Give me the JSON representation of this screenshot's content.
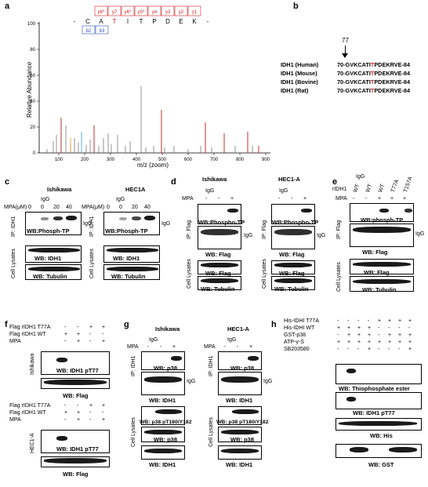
{
  "panels": {
    "a": {
      "label": "a",
      "ylabel": "Relative Abundance",
      "xlabel": "m/z (zoom)",
      "y_ticks": [
        "0",
        "20",
        "40",
        "60",
        "80",
        "100"
      ],
      "x_ticks": [
        "100",
        "200",
        "300",
        "400",
        "500",
        "600",
        "700",
        "800",
        "900"
      ],
      "sequence": [
        "-",
        "C",
        "A",
        "T",
        "I",
        "T",
        "P",
        "D",
        "E",
        "K",
        "-"
      ],
      "y_ions": [
        "y8*",
        "y7",
        "y6*",
        "y5*",
        "y4",
        "y3",
        "y2",
        "y1"
      ],
      "b_ions": [
        "b2",
        "b3"
      ],
      "phospho_site": "T"
    },
    "b": {
      "label": "b",
      "site_number": "77",
      "rows": [
        {
          "name": "IDH1 (Human)",
          "pre": "70-GVKCATI",
          "site": "T",
          "post": "PDEKRVE-84"
        },
        {
          "name": "IDH1 (Mouse)",
          "pre": "70-GVKCATI",
          "site": "T",
          "post": "PDEKRVE-84"
        },
        {
          "name": "IDH1 (Bovine)",
          "pre": "70-GVKCATI",
          "site": "T",
          "post": "PDEKRVE-84"
        },
        {
          "name": "IDH1 (Rat)",
          "pre": "70-GVKCATI",
          "site": "T",
          "post": "PDEKRVE-84"
        }
      ]
    },
    "c": {
      "label": "c",
      "left_title": "Ishikawa",
      "right_title": "HEC1A",
      "igg": "IgG",
      "mpa_label": "MPA(μM)",
      "doses": [
        "0",
        "0",
        "20",
        "40"
      ],
      "ip_label": "IP: IDH1",
      "lysate_label": "Cell Lysates",
      "wb_top": "WB:Phosph-TP",
      "wb_mid": "WB: IDH1",
      "wb_bot": "WB: Tubulin",
      "igg_side": "IgG"
    },
    "d": {
      "label": "d",
      "left_title": "Ishikawa",
      "right_title": "HEC1-A",
      "mpa": "MPA",
      "igg": "IgG",
      "signs": [
        "-",
        "-",
        "+"
      ],
      "ip_label": "IP: Flag",
      "lysate_label": "Cell Lysates",
      "wb_phospho": "WB:Phospho-TP",
      "wb_flag": "WB: Flag",
      "wb_lys_flag": "WB: Flag",
      "wb_tubulin": "WB: Tubulin",
      "igg_side": "IgG"
    },
    "e": {
      "label": "e",
      "igg": "IgG",
      "rIDH1": "rIDH1",
      "mpa": "MPA",
      "lanes": [
        "WT",
        "WT",
        "WT",
        "T77A",
        "T157A"
      ],
      "mpa_signs": [
        "-",
        "-",
        "+",
        "+",
        "+"
      ],
      "ip_label": "IP: Flag",
      "lysate_label": "Cell Lysates",
      "wb_top": "WB:phosph-TP",
      "wb_flag": "WB: Flag",
      "wb_lys_flag": "WB: Flag",
      "wb_tubulin": "WB: Tubulin",
      "igg_side": "IgG"
    },
    "f": {
      "label": "f",
      "row1": "Flag rIDH1 T77A",
      "row2": "Flag rIDH1 WT",
      "row3": "MPA",
      "r1_signs": [
        "-",
        "-",
        "+",
        "+"
      ],
      "r2_signs": [
        "+",
        "+",
        "-",
        "-"
      ],
      "r3_signs": [
        "-",
        "+",
        "-",
        "+"
      ],
      "cell_top": "Ishikawa",
      "cell_bot": "HEC1-A",
      "wb_pt77": "WB: IDH1 pT77",
      "wb_flag": "WB: Flag"
    },
    "g": {
      "label": "g",
      "left_title": "Ishikawa",
      "right_title": "HEC1-A",
      "igg": "IgG",
      "mpa": "MPA",
      "signs": [
        "-",
        "-",
        "+"
      ],
      "ip_label": "IP: IDH1",
      "lysate_label": "Cell Lysates",
      "wb_p38": "WB: p38",
      "wb_idh1": "WB: IDH1",
      "wb_pp38": "WB: p38 pT180/Y182",
      "wb_lys_p38": "WB: p38",
      "wb_lys_idh1": "WB: IDH1",
      "igg_side": "IgG"
    },
    "h": {
      "label": "h",
      "rows": [
        "His-IDHI T77A",
        "His-IDHI WT",
        "GST-p38",
        "ATP-γ-S",
        "SB203580"
      ],
      "signs": [
        [
          "-",
          "-",
          "-",
          "-",
          "+",
          "+",
          "+",
          "+"
        ],
        [
          "+",
          "+",
          "+",
          "+",
          "-",
          "-",
          "-",
          "-"
        ],
        [
          "-",
          "+",
          "+",
          "+",
          "-",
          "+",
          "+",
          "+"
        ],
        [
          "+",
          "+",
          "+",
          "+",
          "+",
          "+",
          "+",
          "+"
        ],
        [
          "-",
          "-",
          "-",
          "+",
          "-",
          "-",
          "-",
          "+"
        ]
      ],
      "wb1": "WB: Thiophosphate ester",
      "wb2": "WB: IDH1 pT77",
      "wb3": "WB: His",
      "wb4": "WB: GST"
    }
  },
  "colors": {
    "ion_red": "#d22222",
    "ion_blue": "#2a4fbf",
    "highlight_site": "#d22222",
    "band": "#1a1a1a",
    "cyan": "#4ab8d6",
    "orange": "#e39a2a"
  }
}
